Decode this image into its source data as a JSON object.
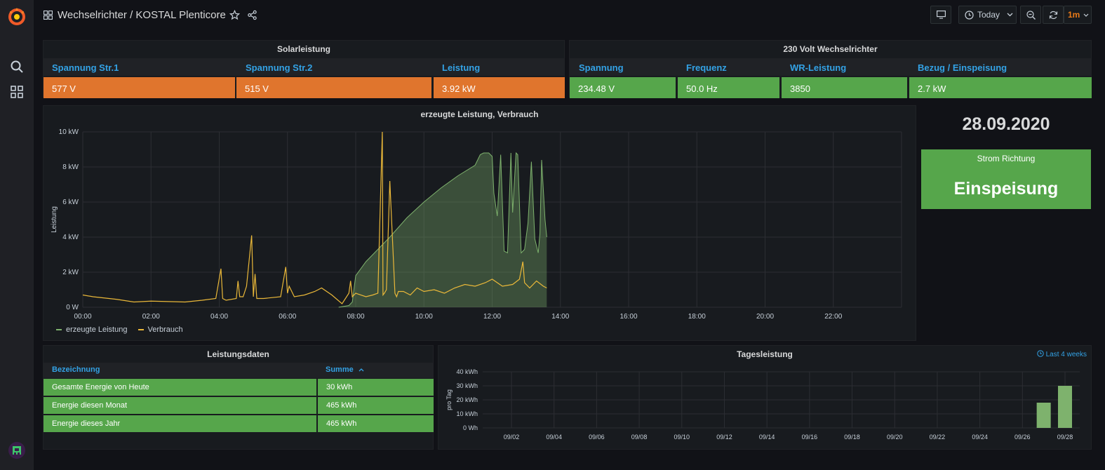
{
  "header": {
    "breadcrumb": "Wechselrichter / KOSTAL Plenticore",
    "time_range": "Today",
    "refresh_interval": "1m"
  },
  "solar": {
    "title": "Solarleistung",
    "columns": [
      "Spannung Str.1",
      "Spannung Str.2",
      "Leistung"
    ],
    "values": [
      "577 V",
      "515 V",
      "3.92 kW"
    ]
  },
  "inverter": {
    "title": "230 Volt Wechselrichter",
    "columns": [
      "Spannung",
      "Frequenz",
      "WR-Leistung",
      "Bezug / Einspeisung"
    ],
    "values": [
      "234.48 V",
      "50.0 Hz",
      "3850",
      "2.7 kW"
    ]
  },
  "date": "28.09.2020",
  "direction": {
    "title": "Strom Richtung",
    "value": "Einspeisung"
  },
  "leistungsdaten": {
    "title": "Leistungsdaten",
    "columns": [
      "Bezeichnung",
      "Summe"
    ],
    "rows": [
      [
        "Gesamte Energie von Heute",
        "30 kWh"
      ],
      [
        "Energie diesen Monat",
        "465 kWh"
      ],
      [
        "Energie dieses Jahr",
        "465 kWh"
      ]
    ]
  },
  "colors": {
    "orange": "#e0752d",
    "green": "#56a64b",
    "link": "#33a2e5",
    "consumption": "#eab839",
    "production": "#7eb26d"
  },
  "chart_data": [
    {
      "type": "area",
      "title": "erzeugte Leistung, Verbrauch",
      "ylabel": "Leistung",
      "y_ticks": [
        "0 W",
        "2 kW",
        "4 kW",
        "6 kW",
        "8 kW",
        "10 kW"
      ],
      "x_ticks": [
        "00:00",
        "02:00",
        "04:00",
        "06:00",
        "08:00",
        "10:00",
        "12:00",
        "14:00",
        "16:00",
        "18:00",
        "20:00",
        "22:00"
      ],
      "xlim_hours": [
        0,
        24
      ],
      "ylim_kw": [
        0,
        10
      ],
      "series": [
        {
          "name": "erzeugte Leistung",
          "x_hours": [
            7.5,
            7.8,
            7.9,
            8.0,
            8.3,
            9.0,
            9.5,
            10.0,
            10.5,
            11.0,
            11.5,
            11.65,
            11.75,
            11.9,
            12.0,
            12.05,
            12.15,
            12.25,
            12.35,
            12.45,
            12.55,
            12.6,
            12.7,
            12.75,
            12.85,
            12.95,
            13.05,
            13.15,
            13.25,
            13.35,
            13.4,
            13.45,
            13.55,
            13.6
          ],
          "y_kw": [
            0,
            0.1,
            0.3,
            1.8,
            2.6,
            4.0,
            5.1,
            6.0,
            6.8,
            7.5,
            8.1,
            8.7,
            8.8,
            8.8,
            8.6,
            6.5,
            5.2,
            8.7,
            3.2,
            3.1,
            8.8,
            5.4,
            8.8,
            8.7,
            3.1,
            3.3,
            4.8,
            8.3,
            3.9,
            3.1,
            4.2,
            8.4,
            5.0,
            4.0
          ]
        },
        {
          "name": "Verbrauch",
          "x_hours": [
            0,
            0.3,
            1.0,
            1.5,
            2.0,
            3.0,
            3.5,
            3.9,
            4.05,
            4.1,
            4.2,
            4.5,
            4.55,
            4.6,
            4.7,
            4.8,
            4.95,
            5.0,
            5.05,
            5.1,
            5.3,
            5.8,
            5.95,
            6.0,
            6.05,
            6.2,
            6.5,
            6.8,
            7.0,
            7.3,
            7.6,
            7.8,
            7.85,
            7.9,
            8.0,
            8.3,
            8.5,
            8.65,
            8.78,
            8.8,
            8.84,
            8.9,
            9.0,
            9.15,
            9.2,
            9.25,
            9.4,
            9.6,
            9.8,
            10.0,
            10.3,
            10.6,
            10.9,
            11.2,
            11.5,
            11.8,
            12.0,
            12.3,
            12.6,
            12.8,
            12.9,
            12.95,
            13.1,
            13.3,
            13.5,
            13.6
          ],
          "y_kw": [
            0.7,
            0.6,
            0.45,
            0.3,
            0.35,
            0.3,
            0.4,
            0.5,
            2.2,
            0.5,
            0.4,
            0.5,
            1.5,
            0.6,
            0.6,
            1.2,
            4.1,
            0.6,
            1.9,
            0.5,
            0.5,
            0.6,
            2.3,
            0.8,
            1.2,
            0.6,
            0.7,
            0.9,
            1.1,
            0.7,
            0.2,
            0.8,
            1.5,
            0.6,
            0.8,
            0.6,
            0.7,
            0.8,
            10.0,
            0.7,
            0.8,
            1.0,
            7.2,
            0.8,
            0.6,
            0.9,
            0.9,
            0.7,
            1.1,
            0.9,
            1.0,
            0.8,
            1.1,
            1.3,
            1.2,
            1.4,
            1.6,
            1.2,
            1.3,
            1.6,
            2.6,
            1.4,
            1.1,
            1.5,
            1.2,
            1.1
          ]
        }
      ]
    },
    {
      "type": "bar",
      "title": "Tagesleistung",
      "time_info": "Last 4 weeks",
      "ylabel": "pro Tag",
      "y_ticks": [
        "0 Wh",
        "10 kWh",
        "20 kWh",
        "30 kWh",
        "40 kWh"
      ],
      "ylim_kwh": [
        0,
        40
      ],
      "x_ticks": [
        "09/02",
        "09/04",
        "09/06",
        "09/08",
        "09/10",
        "09/12",
        "09/14",
        "09/16",
        "09/18",
        "09/20",
        "09/22",
        "09/24",
        "09/26",
        "09/28"
      ],
      "categories": [
        "09/27",
        "09/28"
      ],
      "values": [
        18,
        30
      ]
    }
  ]
}
